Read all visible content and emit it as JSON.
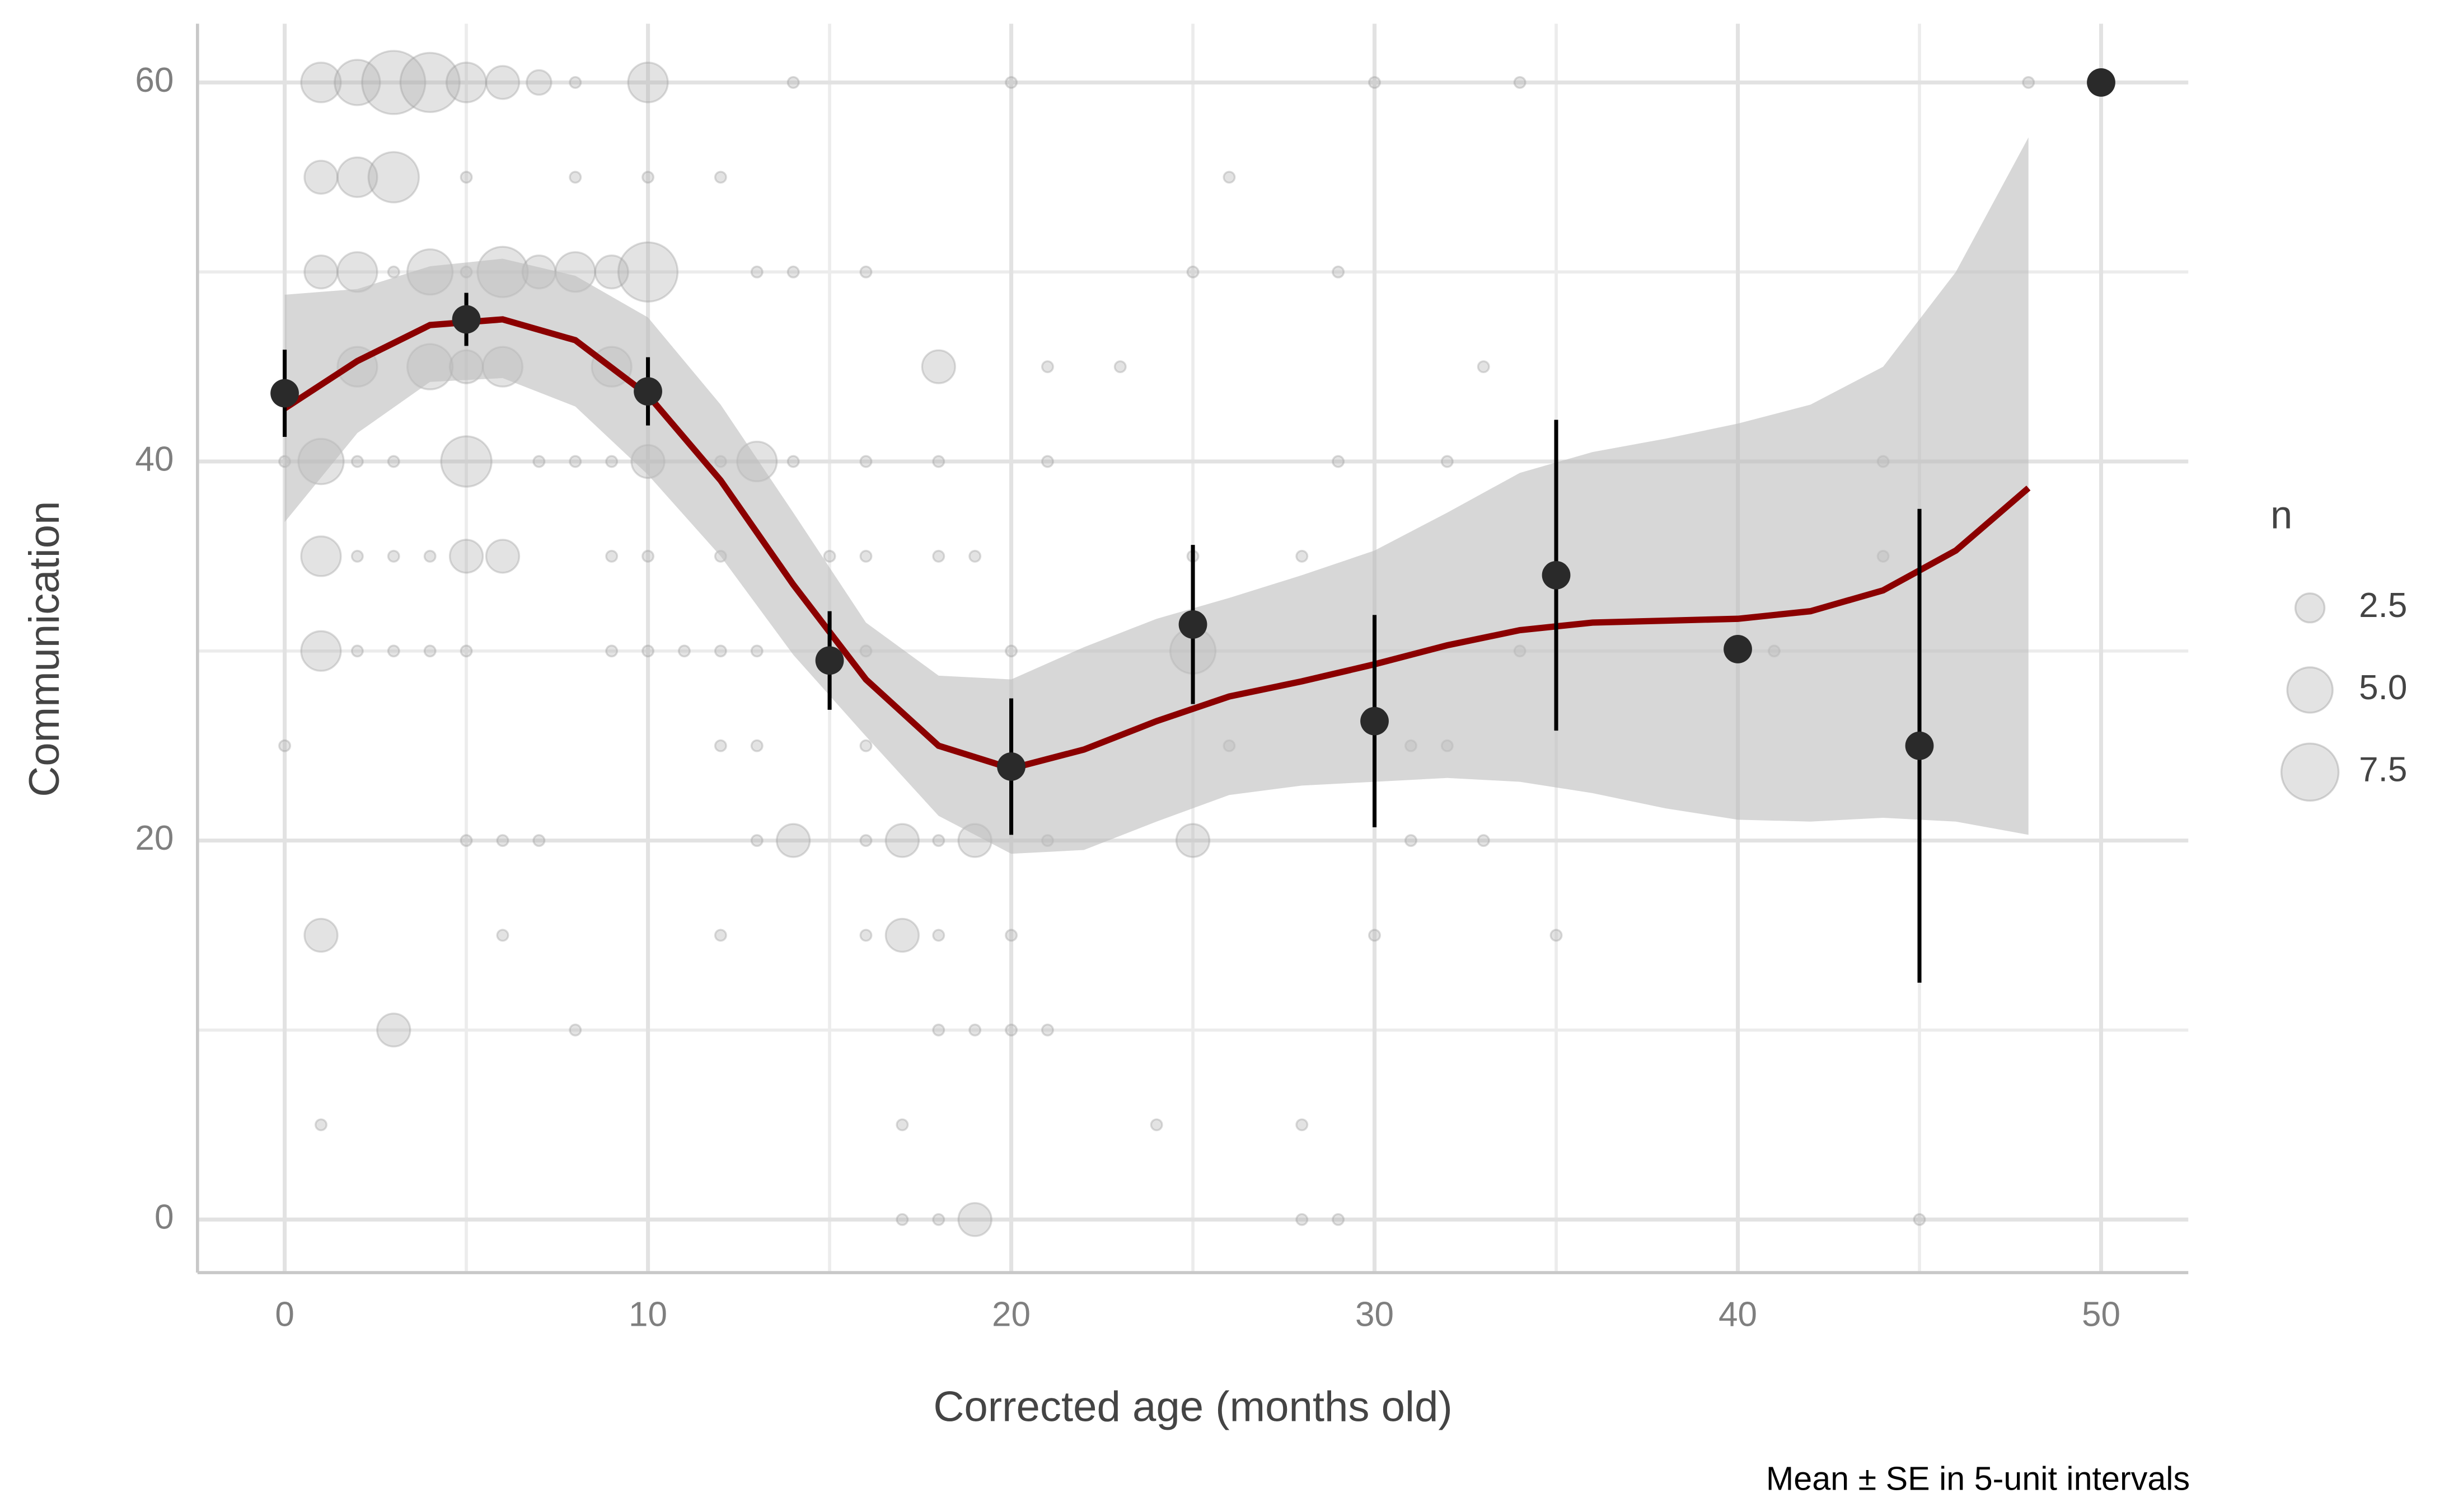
{
  "chart_data": {
    "type": "scatter",
    "x_label": "Corrected age (months old)",
    "y_label": "Communication",
    "caption": "Mean ± SE in 5-unit intervals",
    "xlim": [
      -2.4,
      52.4
    ],
    "ylim": [
      -2.8,
      63.1
    ],
    "xticks": [
      0,
      10,
      20,
      30,
      40,
      50
    ],
    "yticks": [
      0,
      20,
      40,
      60
    ],
    "xticks_minor": [
      5,
      15,
      25,
      35,
      45
    ],
    "yticks_minor": [
      10,
      30,
      50
    ],
    "grid": true,
    "points": {
      "color": "#b0b0b0",
      "x": [
        1,
        2,
        3,
        4,
        5,
        6,
        7,
        8,
        10,
        14,
        20,
        30,
        34,
        48,
        1,
        2,
        3,
        5,
        8,
        10,
        12,
        26,
        1,
        2,
        3,
        4,
        5,
        6,
        7,
        8,
        9,
        10,
        13,
        14,
        16,
        25,
        29,
        2,
        4,
        5,
        6,
        9,
        18,
        21,
        23,
        33,
        0,
        1,
        2,
        3,
        5,
        7,
        8,
        9,
        10,
        12,
        13,
        14,
        16,
        18,
        21,
        29,
        32,
        44,
        1,
        2,
        3,
        4,
        5,
        6,
        9,
        10,
        12,
        15,
        16,
        18,
        19,
        25,
        28,
        44,
        1,
        2,
        3,
        4,
        5,
        9,
        10,
        11,
        12,
        13,
        16,
        20,
        25,
        34,
        41,
        0,
        12,
        13,
        16,
        26,
        31,
        32,
        5,
        6,
        7,
        13,
        14,
        16,
        17,
        18,
        19,
        21,
        25,
        31,
        33,
        1,
        6,
        12,
        16,
        17,
        18,
        20,
        30,
        35,
        3,
        8,
        18,
        19,
        20,
        21,
        1,
        17,
        24,
        28,
        17,
        18,
        19,
        28,
        29,
        45
      ],
      "y": [
        60,
        60,
        60,
        60,
        60,
        60,
        60,
        60,
        60,
        60,
        60,
        60,
        60,
        60,
        55,
        55,
        55,
        55,
        55,
        55,
        55,
        55,
        50,
        50,
        50,
        50,
        50,
        50,
        50,
        50,
        50,
        50,
        50,
        50,
        50,
        50,
        50,
        45,
        45,
        45,
        45,
        45,
        45,
        45,
        45,
        45,
        40,
        40,
        40,
        40,
        40,
        40,
        40,
        40,
        40,
        40,
        40,
        40,
        40,
        40,
        40,
        40,
        40,
        40,
        35,
        35,
        35,
        35,
        35,
        35,
        35,
        35,
        35,
        35,
        35,
        35,
        35,
        35,
        35,
        35,
        30,
        30,
        30,
        30,
        30,
        30,
        30,
        30,
        30,
        30,
        30,
        30,
        30,
        30,
        30,
        25,
        25,
        25,
        25,
        25,
        25,
        25,
        20,
        20,
        20,
        20,
        20,
        20,
        20,
        20,
        20,
        20,
        20,
        20,
        20,
        15,
        15,
        15,
        15,
        15,
        15,
        15,
        15,
        15,
        10,
        10,
        10,
        10,
        10,
        10,
        5,
        5,
        5,
        5,
        0,
        0,
        0,
        0,
        0,
        0
      ],
      "n": [
        4,
        5,
        9,
        8,
        4,
        3,
        2,
        1,
        4,
        1,
        1,
        1,
        1,
        1,
        3,
        4,
        6,
        1,
        1,
        1,
        1,
        1,
        3,
        4,
        1,
        5,
        1,
        6,
        3,
        4,
        3,
        8,
        1,
        1,
        1,
        1,
        1,
        4,
        5,
        3,
        4,
        4,
        3,
        1,
        1,
        1,
        1,
        5,
        1,
        1,
        6,
        1,
        1,
        1,
        3,
        1,
        4,
        1,
        1,
        1,
        1,
        1,
        1,
        1,
        4,
        1,
        1,
        1,
        3,
        3,
        1,
        1,
        1,
        1,
        1,
        1,
        1,
        1,
        1,
        1,
        4,
        1,
        1,
        1,
        1,
        1,
        1,
        1,
        1,
        1,
        1,
        1,
        5,
        1,
        1,
        1,
        1,
        1,
        1,
        1,
        1,
        1,
        1,
        1,
        1,
        1,
        3,
        1,
        3,
        1,
        3,
        1,
        3,
        1,
        1,
        3,
        1,
        1,
        1,
        3,
        1,
        1,
        1,
        1,
        3,
        1,
        1,
        1,
        1,
        1,
        1,
        1,
        1,
        1,
        1,
        1,
        3,
        1,
        1,
        1
      ]
    },
    "means": {
      "color": "#2a2a2a",
      "x": [
        0,
        5,
        10,
        15,
        20,
        25,
        30,
        35,
        40,
        45,
        50
      ],
      "values": [
        43.6,
        47.5,
        43.7,
        29.5,
        23.9,
        31.4,
        26.3,
        34.0,
        30.1,
        25.0,
        60
      ],
      "se": [
        2.3,
        1.4,
        1.8,
        2.6,
        3.6,
        4.2,
        5.6,
        8.2,
        null,
        12.5,
        null
      ]
    },
    "smooth": {
      "color": "#8b0000",
      "band_color": "#bdbdbd",
      "x": [
        0,
        2,
        4,
        6,
        8,
        10,
        12,
        14,
        16,
        18,
        20,
        22,
        24,
        26,
        28,
        30,
        32,
        34,
        36,
        38,
        40,
        42,
        44,
        46,
        48
      ],
      "values": [
        42.8,
        45.3,
        47.2,
        47.5,
        46.4,
        43.5,
        39,
        33.5,
        28.5,
        25,
        23.8,
        24.8,
        26.3,
        27.6,
        28.4,
        29.3,
        30.3,
        31.1,
        31.5,
        31.6,
        31.7,
        32.1,
        33.2,
        35.3,
        38.6
      ],
      "lower": [
        36.8,
        41.5,
        44.2,
        44.4,
        42.9,
        39.3,
        35,
        29.8,
        25.5,
        21.3,
        19.3,
        19.5,
        21,
        22.4,
        22.9,
        23.1,
        23.3,
        23.1,
        22.5,
        21.7,
        21.1,
        21,
        21.2,
        21,
        20.3
      ],
      "upper": [
        48.8,
        49.1,
        50.3,
        50.7,
        49.8,
        47.6,
        43,
        37.3,
        31.5,
        28.7,
        28.5,
        30.2,
        31.7,
        32.8,
        34,
        35.3,
        37.3,
        39.4,
        40.5,
        41.2,
        42,
        43,
        45,
        50,
        57.1
      ]
    },
    "legend": {
      "title": "n",
      "values": [
        2.5,
        {
          "value": 5,
          "label": "5.0"
        },
        7.5
      ]
    }
  }
}
